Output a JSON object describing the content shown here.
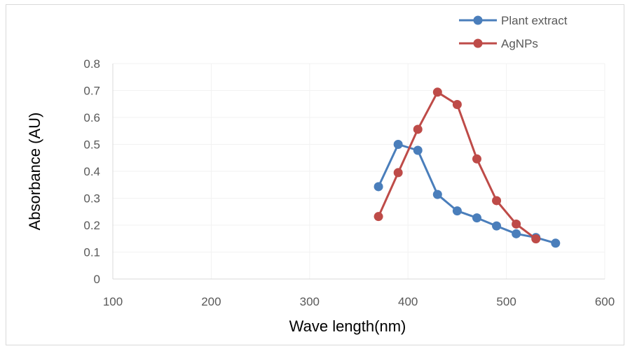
{
  "chart_data": {
    "type": "line",
    "title": "",
    "xlabel": "Wave length(nm)",
    "ylabel": "Absorbance (AU)",
    "xlim": [
      100,
      600
    ],
    "ylim": [
      0,
      0.8
    ],
    "xticks": [
      100,
      200,
      300,
      400,
      500,
      600
    ],
    "yticks": [
      0,
      0.1,
      0.2,
      0.3,
      0.4,
      0.5,
      0.6,
      0.7,
      0.8
    ],
    "xtick_labels": [
      "100",
      "200",
      "300",
      "400",
      "500",
      "600"
    ],
    "ytick_labels": [
      "0",
      "0.1",
      "0.2",
      "0.3",
      "0.4",
      "0.5",
      "0.6",
      "0.7",
      "0.8"
    ],
    "grid": true,
    "legend_position": "top-right",
    "series": [
      {
        "name": "Plant extract",
        "color": "#4a7ebb",
        "x": [
          370,
          390,
          410,
          430,
          450,
          470,
          490,
          510,
          530,
          550
        ],
        "y": [
          0.343,
          0.5,
          0.478,
          0.314,
          0.253,
          0.227,
          0.197,
          0.168,
          0.154,
          0.133
        ]
      },
      {
        "name": "AgNPs",
        "color": "#be4b48",
        "x": [
          370,
          390,
          410,
          430,
          450,
          470,
          490,
          510,
          530
        ],
        "y": [
          0.232,
          0.395,
          0.556,
          0.694,
          0.648,
          0.446,
          0.291,
          0.204,
          0.149
        ]
      }
    ]
  }
}
